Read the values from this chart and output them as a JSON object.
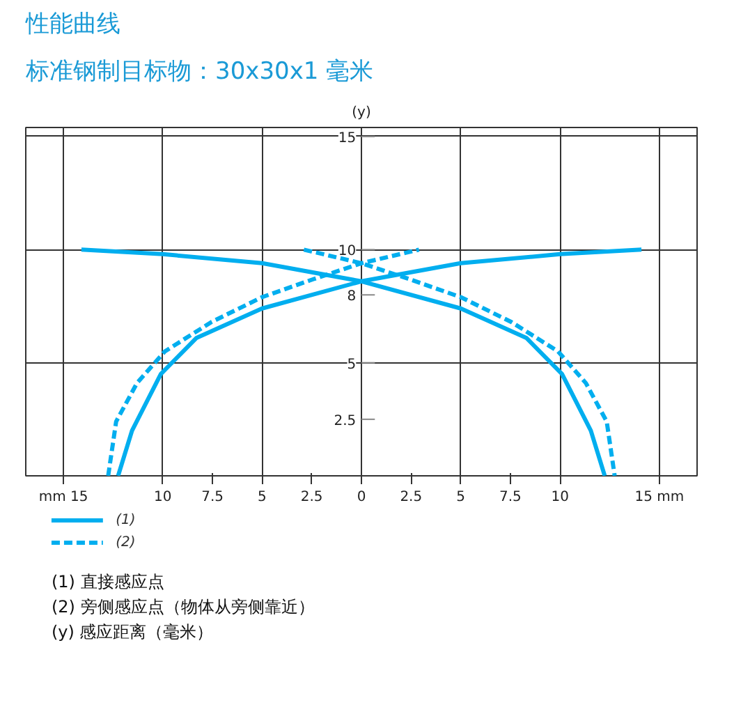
{
  "chart_data": {
    "type": "line",
    "title": "性能曲线",
    "subtitle": "标准钢制目标物：30x30x1 毫米",
    "ylabel": "(y)",
    "xlim": [
      -16.9,
      16.9
    ],
    "xticks": [
      {
        "value": -15,
        "label": "mm 15"
      },
      {
        "value": -10,
        "label": "10"
      },
      {
        "value": -7.5,
        "label": "7.5"
      },
      {
        "value": -5,
        "label": "5"
      },
      {
        "value": -2.5,
        "label": "2.5"
      },
      0,
      2.5,
      5,
      7.5,
      10,
      {
        "value": 15,
        "label": "15 mm"
      }
    ],
    "ylim": [
      0,
      15.4
    ],
    "yticks": [
      2.5,
      5,
      8,
      10,
      15
    ],
    "grid": true,
    "legend": "bottom left",
    "series": [
      {
        "name": "(1)",
        "color": "#00aeef",
        "line_style": "solid",
        "x": [
          -12.25,
          -11.55,
          -10.1,
          -8.3,
          -5,
          0,
          5,
          10,
          14.1
        ],
        "values": [
          0,
          2.0,
          4.5,
          6.1,
          7.4,
          8.6,
          9.4,
          9.8,
          10
        ]
      },
      {
        "color": "#00aeef",
        "line_style": "solid",
        "x": [
          -14.1,
          -10,
          -5,
          0,
          5,
          8.3,
          10.1,
          11.55,
          12.25
        ],
        "values": [
          10,
          9.8,
          9.4,
          8.6,
          7.4,
          6.1,
          4.5,
          2.0,
          0
        ]
      },
      {
        "name": "(2)",
        "color": "#00aeef",
        "line_style": "dashed",
        "x": [
          -12.75,
          -12.35,
          -11.3,
          -9.9,
          -7.55,
          -5,
          -2.4,
          0,
          2.9
        ],
        "values": [
          0,
          2.4,
          4.1,
          5.5,
          6.8,
          7.9,
          8.7,
          9.4,
          10
        ]
      },
      {
        "color": "#00aeef",
        "line_style": "dashed",
        "x": [
          -2.9,
          0,
          2.4,
          5,
          7.55,
          9.9,
          11.3,
          12.35,
          12.75
        ],
        "values": [
          10,
          9.4,
          8.7,
          7.9,
          6.8,
          5.5,
          4.1,
          2.4,
          0
        ]
      }
    ],
    "annotations": [
      "(1)    直接感应点",
      "(2)    旁侧感应点（物体从旁侧靠近）",
      "(y)    感应距离（毫米）"
    ]
  }
}
